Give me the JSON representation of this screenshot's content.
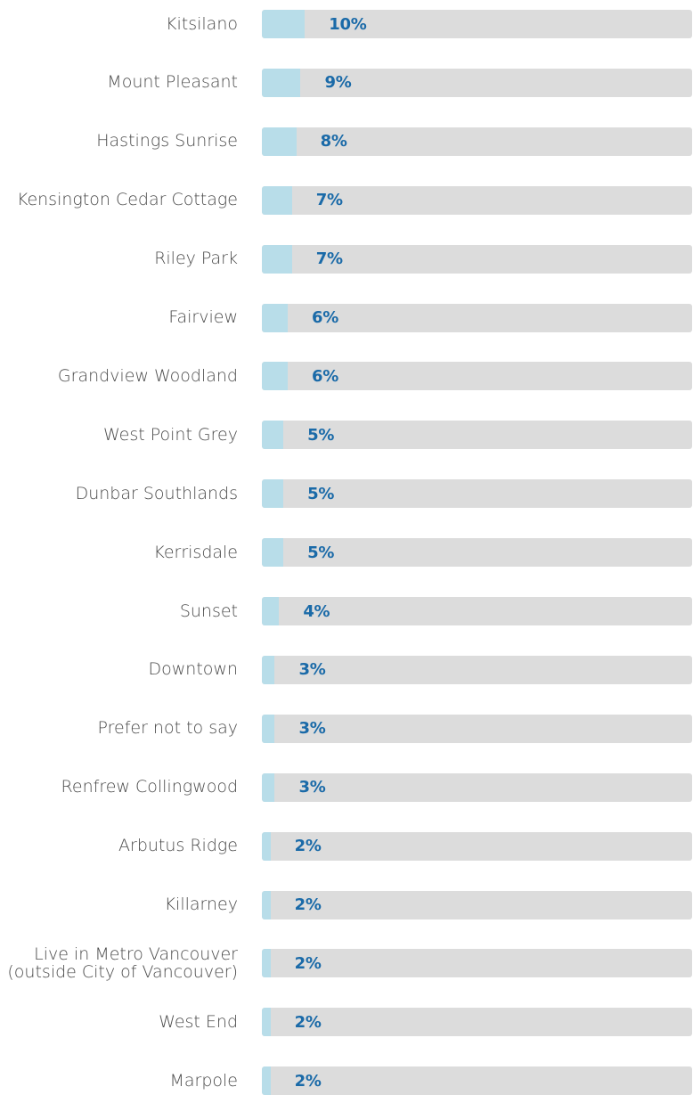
{
  "colors": {
    "bar_fill": "#b8dde9",
    "track": "#dcdcdc",
    "value_text": "#1a6aa8",
    "category_text": "#4a4a4a"
  },
  "chart_data": {
    "type": "bar",
    "orientation": "horizontal",
    "title": "",
    "xlabel": "",
    "ylabel": "",
    "xlim": [
      0,
      100
    ],
    "grid": false,
    "legend": "none",
    "categories": [
      "Kitsilano",
      "Mount Pleasant",
      "Hastings Sunrise",
      "Kensington Cedar Cottage",
      "Riley Park",
      "Fairview",
      "Grandview Woodland",
      "West Point Grey",
      "Dunbar Southlands",
      "Kerrisdale",
      "Sunset",
      "Downtown",
      "Prefer not to say",
      "Renfrew Collingwood",
      "Arbutus Ridge",
      "Killarney",
      "Live in Metro Vancouver\n(outside City of Vancouver)",
      "West End",
      "Marpole"
    ],
    "values": [
      10,
      9,
      8,
      7,
      7,
      6,
      6,
      5,
      5,
      5,
      4,
      3,
      3,
      3,
      2,
      2,
      2,
      2,
      2
    ],
    "value_labels": [
      "10%",
      "9%",
      "8%",
      "7%",
      "7%",
      "6%",
      "6%",
      "5%",
      "5%",
      "5%",
      "4%",
      "3%",
      "3%",
      "3%",
      "2%",
      "2%",
      "2%",
      "2%",
      "2%"
    ]
  }
}
